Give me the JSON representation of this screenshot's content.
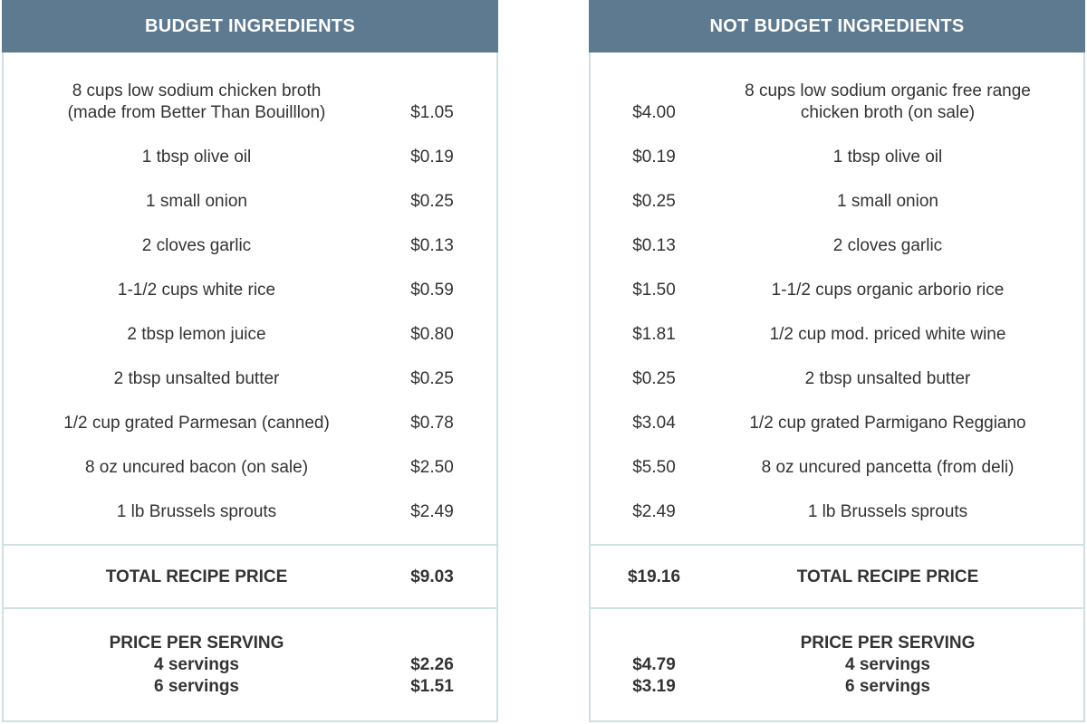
{
  "budget": {
    "title": "BUDGET INGREDIENTS",
    "items": [
      {
        "name": [
          "8 cups low sodium chicken broth",
          "(made from Better Than Bouilllon)"
        ],
        "price": "$1.05"
      },
      {
        "name": [
          "1 tbsp olive oil"
        ],
        "price": "$0.19"
      },
      {
        "name": [
          "1 small onion"
        ],
        "price": "$0.25"
      },
      {
        "name": [
          "2 cloves garlic"
        ],
        "price": "$0.13"
      },
      {
        "name": [
          "1-1/2 cups white rice"
        ],
        "price": "$0.59"
      },
      {
        "name": [
          "2 tbsp lemon juice"
        ],
        "price": "$0.80"
      },
      {
        "name": [
          "2 tbsp unsalted butter"
        ],
        "price": "$0.25"
      },
      {
        "name": [
          "1/2 cup grated Parmesan (canned)"
        ],
        "price": "$0.78"
      },
      {
        "name": [
          "8 oz uncured bacon (on sale)"
        ],
        "price": "$2.50"
      },
      {
        "name": [
          "1 lb Brussels sprouts"
        ],
        "price": "$2.49"
      }
    ],
    "total_label": "TOTAL RECIPE PRICE",
    "total": "$9.03",
    "serving_label": "PRICE PER SERVING",
    "servings": [
      {
        "label": "4 servings",
        "price": "$2.26"
      },
      {
        "label": "6 servings",
        "price": "$1.51"
      }
    ]
  },
  "not_budget": {
    "title": "NOT BUDGET INGREDIENTS",
    "items": [
      {
        "name": [
          "8 cups low sodium organic free range",
          "chicken broth (on sale)"
        ],
        "price": "$4.00"
      },
      {
        "name": [
          "1 tbsp olive oil"
        ],
        "price": "$0.19"
      },
      {
        "name": [
          "1 small onion"
        ],
        "price": "$0.25"
      },
      {
        "name": [
          "2 cloves garlic"
        ],
        "price": "$0.13"
      },
      {
        "name": [
          "1-1/2 cups organic arborio rice"
        ],
        "price": "$1.50"
      },
      {
        "name": [
          "1/2 cup mod. priced white wine"
        ],
        "price": "$1.81"
      },
      {
        "name": [
          "2 tbsp unsalted butter"
        ],
        "price": "$0.25"
      },
      {
        "name": [
          "1/2 cup grated Parmigano Reggiano"
        ],
        "price": "$3.04"
      },
      {
        "name": [
          "8 oz uncured pancetta (from deli)"
        ],
        "price": "$5.50"
      },
      {
        "name": [
          "1 lb Brussels sprouts"
        ],
        "price": "$2.49"
      }
    ],
    "total_label": "TOTAL RECIPE PRICE",
    "total": "$19.16",
    "serving_label": "PRICE PER SERVING",
    "servings": [
      {
        "label": "4 servings",
        "price": "$4.79"
      },
      {
        "label": "6 servings",
        "price": "$3.19"
      }
    ]
  }
}
